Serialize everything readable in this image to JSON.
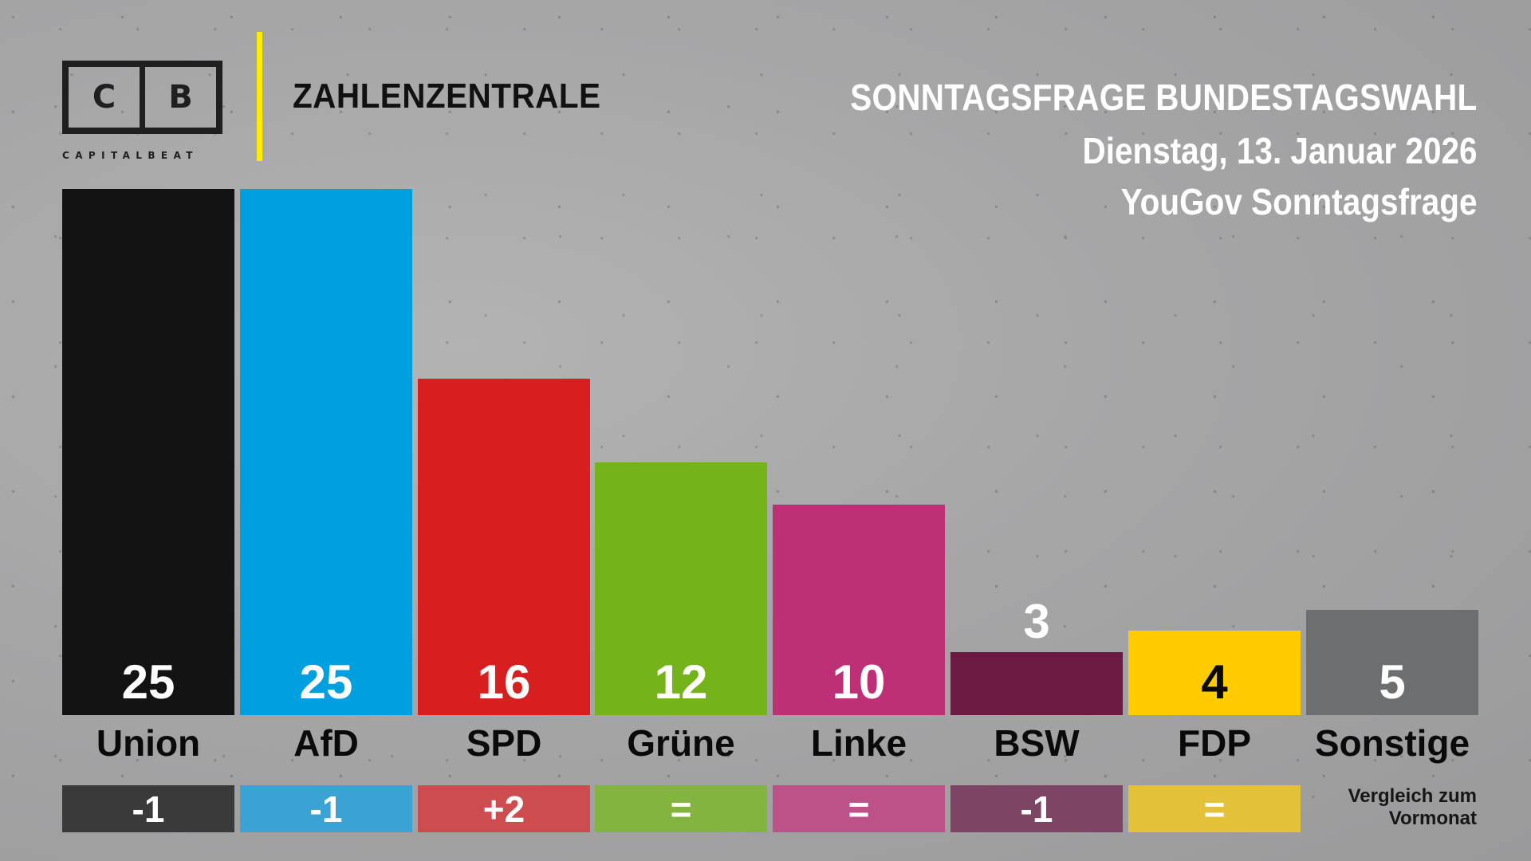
{
  "brand": {
    "logo_letters": [
      "C",
      "B"
    ],
    "logo_wordmark": "CAPITALBEAT",
    "section_title": "ZAHLENZENTRALE",
    "accent_color": "#ffec00"
  },
  "header": {
    "title": "SONNTAGSFRAGE BUNDESTAGSWAHL",
    "date": "Dienstag, 13. Januar 2026",
    "source": "YouGov Sonntagsfrage"
  },
  "chart_data": {
    "type": "bar",
    "title": "SONNTAGSFRAGE BUNDESTAGSWAHL",
    "subtitle": "Dienstag, 13. Januar 2026 — YouGov Sonntagsfrage",
    "xlabel": "",
    "ylabel": "",
    "ylim": [
      0,
      25
    ],
    "grid": false,
    "categories": [
      "Union",
      "AfD",
      "SPD",
      "Grüne",
      "Linke",
      "BSW",
      "FDP",
      "Sonstige"
    ],
    "values": [
      25,
      25,
      16,
      12,
      10,
      3,
      4,
      5
    ],
    "value_labels": [
      "25",
      "25",
      "16",
      "12",
      "10",
      "3",
      "4",
      "5"
    ],
    "changes": [
      "-1",
      "-1",
      "+2",
      "=",
      "=",
      "-1",
      "=",
      ""
    ],
    "change_note": [
      "Vergleich zum",
      "Vormonat"
    ],
    "colors": [
      "#131313",
      "#009fe0",
      "#d71f1f",
      "#75b31b",
      "#be3075",
      "#6b1a42",
      "#ffcc00",
      "#6d6e70"
    ],
    "change_colors": [
      "#3a3a3a",
      "#3aa3d4",
      "#cc4c4f",
      "#82b43f",
      "#bd5289",
      "#7d4563",
      "#e3c23a",
      ""
    ],
    "value_text_colors": [
      "#ffffff",
      "#ffffff",
      "#ffffff",
      "#ffffff",
      "#ffffff",
      "#ffffff",
      "#0a0a0a",
      "#ffffff"
    ]
  }
}
